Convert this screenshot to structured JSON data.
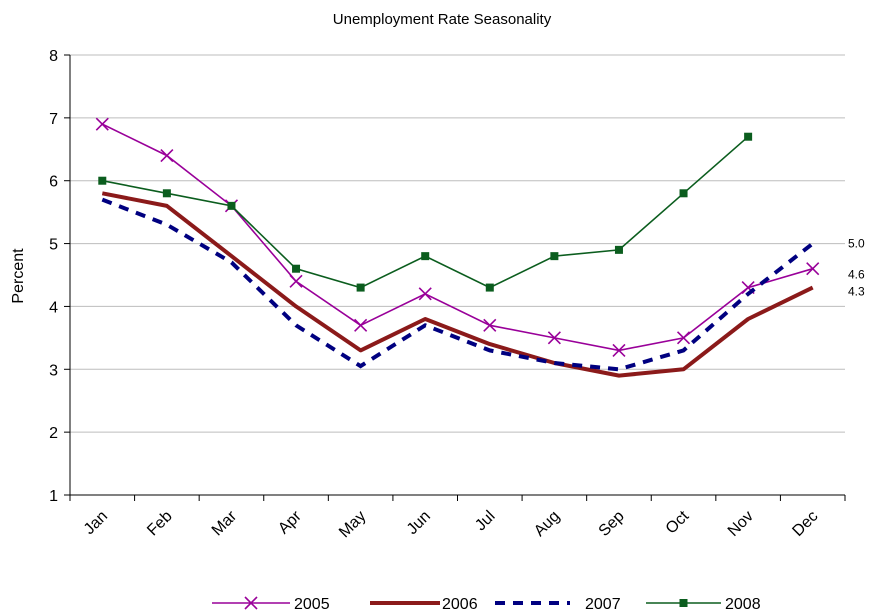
{
  "chart_data": {
    "type": "line",
    "title": "Unemployment Rate Seasonality",
    "xlabel": "",
    "ylabel": "Percent",
    "ylim": [
      1,
      8
    ],
    "yticks": [
      1,
      2,
      3,
      4,
      5,
      6,
      7,
      8
    ],
    "grid": true,
    "legend": "bottom",
    "categories": [
      "Jan",
      "Feb",
      "Mar",
      "Apr",
      "May",
      "Jun",
      "Jul",
      "Aug",
      "Sep",
      "Oct",
      "Nov",
      "Dec"
    ],
    "series": [
      {
        "name": "2005",
        "color": "#990099",
        "style": "solid",
        "marker": "x",
        "values": [
          6.9,
          6.4,
          5.6,
          4.4,
          3.7,
          4.2,
          3.7,
          3.5,
          3.3,
          3.5,
          4.3,
          4.6
        ]
      },
      {
        "name": "2006",
        "color": "#8B1A1A",
        "style": "thick",
        "marker": "none",
        "values": [
          5.8,
          5.6,
          4.8,
          4.0,
          3.3,
          3.8,
          3.4,
          3.1,
          2.9,
          3.0,
          3.8,
          4.3
        ]
      },
      {
        "name": "2007",
        "color": "#000080",
        "style": "dashed",
        "marker": "none",
        "values": [
          5.7,
          5.3,
          4.7,
          3.7,
          3.05,
          3.7,
          3.3,
          3.1,
          3.0,
          3.3,
          4.2,
          5.0
        ]
      },
      {
        "name": "2008",
        "color": "#0B5D1E",
        "style": "solid",
        "marker": "square",
        "values": [
          6.0,
          5.8,
          5.6,
          4.6,
          4.3,
          4.8,
          4.3,
          4.8,
          4.9,
          5.8,
          6.7,
          null
        ]
      }
    ],
    "annotations": [
      {
        "text": "5.0",
        "value": 5.0
      },
      {
        "text": "4.6",
        "value": 4.6
      },
      {
        "text": "4.3",
        "value": 4.3
      }
    ]
  }
}
